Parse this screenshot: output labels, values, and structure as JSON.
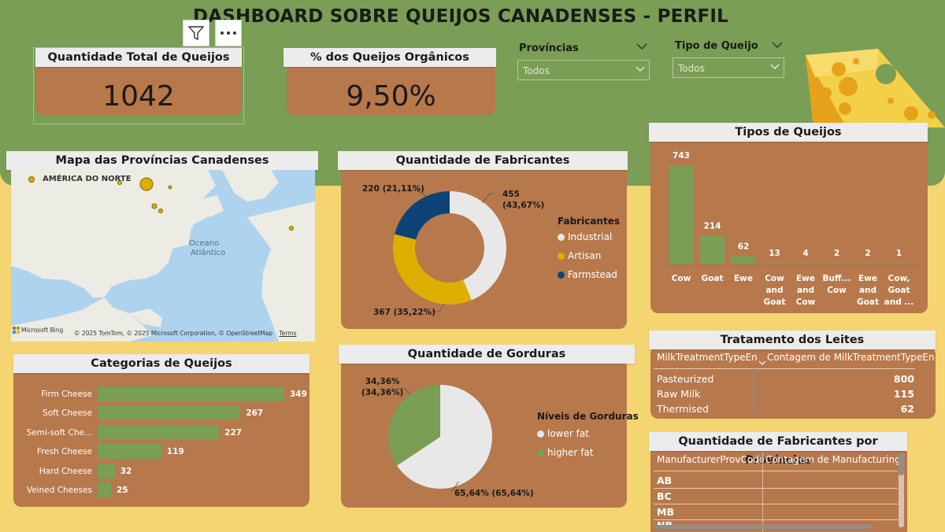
{
  "header": {
    "title": "DASHBOARD SOBRE QUEIJOS CANADENSES - PERFIL"
  },
  "toolbar": {
    "filter_icon": "filter-icon",
    "more_icon": "more-options-icon"
  },
  "kpis": {
    "total": {
      "label": "Quantidade Total de Queijos",
      "value": "1042"
    },
    "organic": {
      "label": "% dos Queijos Orgânicos",
      "value": "9,50%"
    }
  },
  "slicers": {
    "provincias": {
      "label": "Províncias",
      "value": "Todos"
    },
    "tipo": {
      "label": "Tipo de Queijo",
      "value": "Todos"
    }
  },
  "map": {
    "title": "Mapa das Províncias Canadenses",
    "region_label": "AMÉRICA DO NORTE",
    "ocean_label_1": "Oceano",
    "ocean_label_2": "Atlântico",
    "provider": "Microsoft Bing",
    "copyright": "© 2025 TomTom, © 2025 Microsoft Corporation, © OpenStreetMap",
    "terms": "Terms"
  },
  "colors": {
    "banner": "#7a9e55",
    "background": "#f5d472",
    "panel": "#b7784b",
    "bar_green": "#7a9e55",
    "industrial": "#e8e8e8",
    "artisan": "#dcaf00",
    "farmstead": "#0e4377",
    "lower_fat": "#e8e8e8",
    "higher_fat": "#7a9e55"
  },
  "fabricantes": {
    "title": "Quantidade de Fabricantes",
    "legend_title": "Fabricantes",
    "labels": {
      "industrial": "455\n(43,67%)",
      "artisan": "367 (35,22%)",
      "farmstead": "220 (21,11%)"
    }
  },
  "gorduras": {
    "title": "Quantidade de Gorduras",
    "legend_title": "Níveis de Gorduras",
    "labels": {
      "higher": "34,36%\n(34,36%)",
      "lower": "65,64% (65,64%)"
    }
  },
  "tipos": {
    "title": "Tipos de Queijos"
  },
  "categorias": {
    "title": "Categorias de Queijos"
  },
  "tratamento": {
    "title": "Tratamento dos Leites",
    "col1": "MilkTreatmentTypeEn",
    "col2": "Contagem de MilkTreatmentTypeEn",
    "rows": [
      {
        "name": "Pasteurized",
        "value": "800"
      },
      {
        "name": "Raw Milk",
        "value": "115"
      },
      {
        "name": "Thermised",
        "value": "62"
      }
    ]
  },
  "provincias_tbl": {
    "title": "Quantidade de Fabricantes por Províncias",
    "col1": "ManufacturerProvCode",
    "col2": "Contagem de ManufacturingTy",
    "rows": [
      "AB",
      "BC",
      "MB",
      "NB"
    ]
  },
  "chart_data": [
    {
      "type": "pie",
      "title": "Quantidade de Fabricantes",
      "legend_title": "Fabricantes",
      "categories": [
        "Industrial",
        "Artisan",
        "Farmstead"
      ],
      "values": [
        455,
        367,
        220
      ],
      "percent": [
        43.67,
        35.22,
        21.11
      ],
      "donut": true,
      "legend": "right"
    },
    {
      "type": "pie",
      "title": "Quantidade de Gorduras",
      "legend_title": "Níveis de Gorduras",
      "categories": [
        "lower fat",
        "higher fat"
      ],
      "values": [
        65.64,
        34.36
      ],
      "legend": "right"
    },
    {
      "type": "bar",
      "title": "Tipos de Queijos",
      "categories": [
        "Cow",
        "Goat",
        "Ewe",
        "Cow and Goat",
        "Ewe and Cow",
        "Buff... Cow",
        "Ewe and Goat",
        "Cow, Goat and ..."
      ],
      "values": [
        743,
        214,
        62,
        13,
        4,
        2,
        2,
        1
      ]
    },
    {
      "type": "bar",
      "orientation": "horizontal",
      "title": "Categorias de Queijos",
      "categories": [
        "Firm Cheese",
        "Soft Cheese",
        "Semi-soft Che...",
        "Fresh Cheese",
        "Hard Cheese",
        "Veined Cheeses"
      ],
      "values": [
        349,
        267,
        227,
        119,
        32,
        25
      ]
    }
  ]
}
